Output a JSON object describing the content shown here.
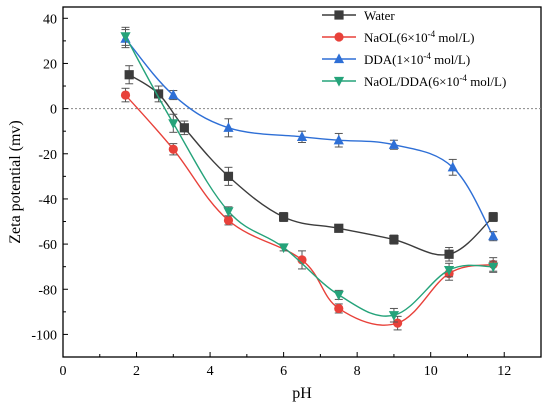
{
  "chart_data": {
    "type": "line",
    "xlabel": "pH",
    "ylabel": "Zeta potential (mv)",
    "xlim": [
      0,
      13
    ],
    "ylim": [
      -110,
      45
    ],
    "xticks": [
      0,
      2,
      4,
      6,
      8,
      10,
      12
    ],
    "yticks": [
      -100,
      -80,
      -60,
      -40,
      -20,
      0,
      20,
      40
    ],
    "zero_reference_line": true,
    "legend_position": "top-right",
    "series": [
      {
        "name": "Water",
        "marker": "square",
        "color": "#3c3c3c",
        "points": [
          {
            "x": 1.8,
            "y": 15,
            "err": 4
          },
          {
            "x": 2.6,
            "y": 6.5,
            "err": 3.5
          },
          {
            "x": 3.3,
            "y": -8.5,
            "err": 3
          },
          {
            "x": 4.5,
            "y": -30,
            "err": 4
          },
          {
            "x": 6.0,
            "y": -48,
            "err": 2
          },
          {
            "x": 7.5,
            "y": -53,
            "err": 1.5
          },
          {
            "x": 9.0,
            "y": -58,
            "err": 2
          },
          {
            "x": 10.5,
            "y": -64.5,
            "err": 3
          },
          {
            "x": 11.7,
            "y": -48,
            "err": 2
          }
        ]
      },
      {
        "name": "NaOL(6×10-4 mol/L)",
        "name_parts": [
          "NaOL(6×10",
          "-4",
          " mol/L)"
        ],
        "marker": "circle",
        "color": "#e8413a",
        "points": [
          {
            "x": 1.7,
            "y": 6,
            "err": 3
          },
          {
            "x": 3.0,
            "y": -18,
            "err": 2.5
          },
          {
            "x": 4.5,
            "y": -49.5,
            "err": 2
          },
          {
            "x": 6.5,
            "y": -67,
            "err": 4
          },
          {
            "x": 7.5,
            "y": -88.5,
            "err": 2
          },
          {
            "x": 9.1,
            "y": -95,
            "err": 3
          },
          {
            "x": 10.5,
            "y": -73,
            "err": 3
          },
          {
            "x": 11.7,
            "y": -69,
            "err": 3
          }
        ]
      },
      {
        "name": "DDA(1×10-4 mol/L)",
        "name_parts": [
          "DDA(1×10",
          "-4",
          " mol/L)"
        ],
        "marker": "triangle-up",
        "color": "#2e6fd6",
        "points": [
          {
            "x": 1.7,
            "y": 31,
            "err": 4
          },
          {
            "x": 3.0,
            "y": 6,
            "err": 2
          },
          {
            "x": 4.5,
            "y": -8.5,
            "err": 4
          },
          {
            "x": 6.5,
            "y": -12.5,
            "err": 2.5
          },
          {
            "x": 7.5,
            "y": -14,
            "err": 3
          },
          {
            "x": 9.0,
            "y": -16,
            "err": 2
          },
          {
            "x": 10.6,
            "y": -26,
            "err": 3.5
          },
          {
            "x": 11.7,
            "y": -56.5,
            "err": 2
          }
        ]
      },
      {
        "name": "NaOL/DDA(6×10-4 mol/L)",
        "name_parts": [
          "NaOL/DDA(6×10",
          "-4",
          " mol/L)"
        ],
        "marker": "triangle-down",
        "color": "#25a37a",
        "points": [
          {
            "x": 1.7,
            "y": 32,
            "err": 4
          },
          {
            "x": 3.0,
            "y": -6.5,
            "err": 4
          },
          {
            "x": 4.5,
            "y": -45.5,
            "err": 2
          },
          {
            "x": 6.0,
            "y": -61.5,
            "err": 1.5
          },
          {
            "x": 7.5,
            "y": -82.5,
            "err": 2
          },
          {
            "x": 9.0,
            "y": -91.5,
            "err": 3
          },
          {
            "x": 10.5,
            "y": -71.5,
            "err": 3
          },
          {
            "x": 11.7,
            "y": -70,
            "err": 2.5
          }
        ]
      }
    ]
  }
}
